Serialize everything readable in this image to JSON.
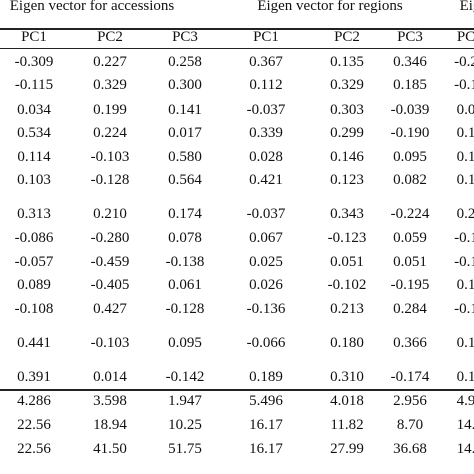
{
  "groups": [
    {
      "label": "Eigen vector for accessions"
    },
    {
      "label": "Eigen vector for regions"
    },
    {
      "label": "Eig"
    }
  ],
  "columns": [
    "PC1",
    "PC2",
    "PC3",
    "PC1",
    "PC2",
    "PC3",
    "PC"
  ],
  "rows": [
    [
      "-0.309",
      "0.227",
      "0.258",
      "0.367",
      "0.135",
      "0.346",
      "-0.2"
    ],
    [
      "-0.115",
      "0.329",
      "0.300",
      "0.112",
      "0.329",
      "0.185",
      "-0.1"
    ],
    [
      "0.034",
      "0.199",
      "0.141",
      "-0.037",
      "0.303",
      "-0.039",
      "0.0"
    ],
    [
      "0.534",
      "0.224",
      "0.017",
      "0.339",
      "0.299",
      "-0.190",
      "0.1"
    ],
    [
      "0.114",
      "-0.103",
      "0.580",
      "0.028",
      "0.146",
      "0.095",
      "0.1"
    ],
    [
      "0.103",
      "-0.128",
      "0.564",
      "0.421",
      "0.123",
      "0.082",
      "0.1"
    ],
    [
      "0.313",
      "0.210",
      "0.174",
      "-0.037",
      "0.343",
      "-0.224",
      "0.2"
    ],
    [
      "-0.086",
      "-0.280",
      "0.078",
      "0.067",
      "-0.123",
      "0.059",
      "-0.1"
    ],
    [
      "-0.057",
      "-0.459",
      "-0.138",
      "0.025",
      "0.051",
      "0.051",
      "-0.1"
    ],
    [
      "0.089",
      "-0.405",
      "0.061",
      "0.026",
      "-0.102",
      "-0.195",
      "0.1"
    ],
    [
      "-0.108",
      "0.427",
      "-0.128",
      "-0.136",
      "0.213",
      "0.284",
      "-0.1"
    ],
    [
      "0.441",
      "-0.103",
      "0.095",
      "-0.066",
      "0.180",
      "0.366",
      "0.1"
    ],
    [
      "0.391",
      "0.014",
      "-0.142",
      "0.189",
      "0.310",
      "-0.174",
      "0.1"
    ],
    [
      "4.286",
      "3.598",
      "1.947",
      "5.496",
      "4.018",
      "2.956",
      "4.9"
    ],
    [
      "22.56",
      "18.94",
      "10.25",
      "16.17",
      "11.82",
      "8.70",
      "14."
    ],
    [
      "22.56",
      "41.50",
      "51.75",
      "16.17",
      "27.99",
      "36.68",
      "14."
    ]
  ]
}
